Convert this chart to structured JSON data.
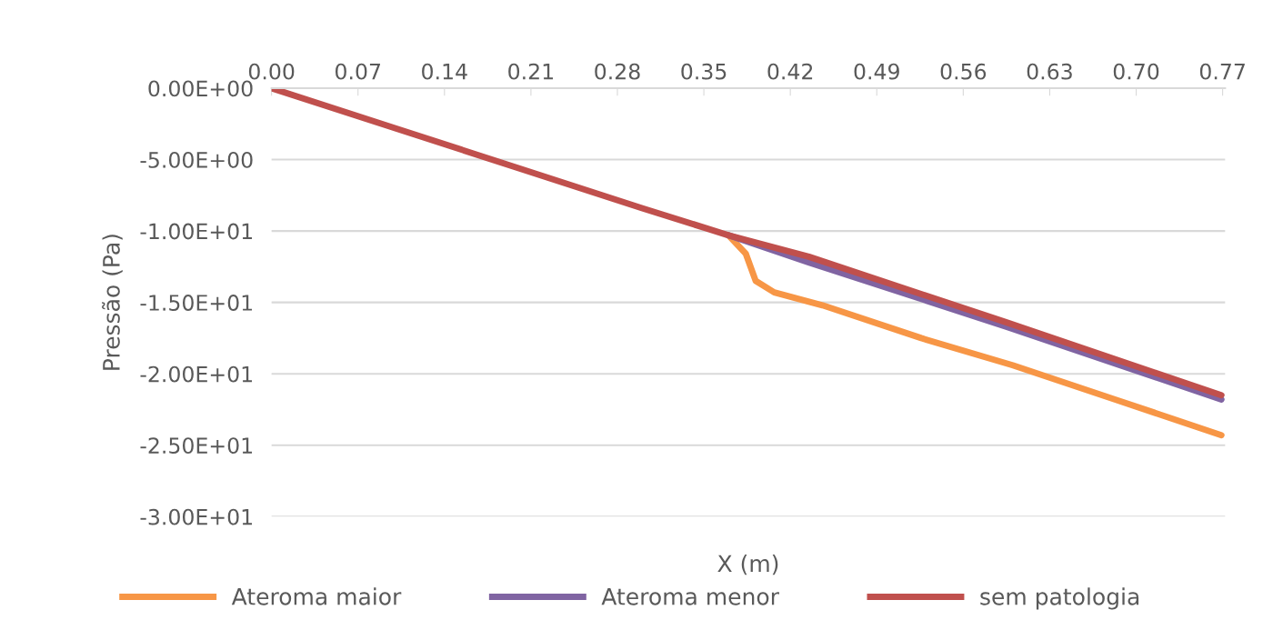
{
  "chart_data": {
    "type": "line",
    "xlabel": "X (m)",
    "ylabel": "Pressão (Pa)",
    "xlim": [
      0,
      0.772
    ],
    "xticks": [
      {
        "value": 0,
        "label": "0.00"
      },
      0.07,
      0.14,
      0.21,
      0.28,
      0.35,
      0.42,
      0.49,
      0.56,
      0.63,
      {
        "value": 0.7,
        "label": "0.70"
      },
      0.77
    ],
    "ylim": [
      -30,
      0
    ],
    "yticks": [
      {
        "value": 0,
        "label": "0.00E+00"
      },
      {
        "value": -5,
        "label": "-5.00E+00"
      },
      {
        "value": -10,
        "label": "-1.00E+01"
      },
      {
        "value": -15,
        "label": "-1.50E+01"
      },
      {
        "value": -20,
        "label": "-2.00E+01"
      },
      {
        "value": -25,
        "label": "-2.50E+01"
      },
      {
        "value": -30,
        "label": "-3.00E+01"
      }
    ],
    "grid": "y",
    "legend": "bottom",
    "marker": "none",
    "line_style": "solid",
    "series": [
      {
        "name": "Ateroma maior",
        "color": "#f79646",
        "x": [
          0.37,
          0.384,
          0.392,
          0.407,
          0.446,
          0.526,
          0.6,
          0.683,
          0.769
        ],
        "values": [
          -10.3,
          -11.6,
          -13.5,
          -14.3,
          -15.2,
          -17.5,
          -19.4,
          -21.8,
          -24.3
        ]
      },
      {
        "name": "Ateroma menor",
        "color": "#8064a2",
        "x": [
          0.37,
          0.435,
          0.595,
          0.769
        ],
        "values": [
          -10.3,
          -12.2,
          -16.7,
          -21.8
        ]
      },
      {
        "name": "sem patologia",
        "color": "#c0504d",
        "x": [
          0,
          0.1,
          0.2,
          0.3,
          0.37,
          0.435,
          0.595,
          0.769
        ],
        "values": [
          0,
          -2.8,
          -5.6,
          -8.4,
          -10.3,
          -11.8,
          -16.4,
          -21.5
        ]
      }
    ]
  }
}
